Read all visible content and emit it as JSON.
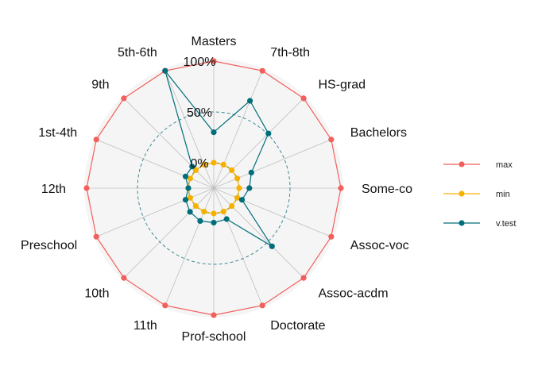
{
  "chart_data": {
    "type": "radar",
    "title": "",
    "categories": [
      "Masters",
      "7th-8th",
      "HS-grad",
      "Bachelors",
      "Some-co",
      "Assoc-voc",
      "Assoc-acdm",
      "Doctorate",
      "Prof-school",
      "11th",
      "10th",
      "Preschool",
      "12th",
      "1st-4th",
      "9th",
      "5th-6th"
    ],
    "tick_labels": [
      "0%",
      "50%",
      "100%"
    ],
    "rlim": [
      -25,
      100
    ],
    "series": [
      {
        "name": "max",
        "color": "#F25F5C",
        "values": [
          100,
          100,
          100,
          100,
          100,
          100,
          100,
          100,
          100,
          100,
          100,
          100,
          100,
          100,
          100,
          100
        ]
      },
      {
        "name": "min",
        "color": "#F6B100",
        "values": [
          0,
          0,
          0,
          0,
          0,
          0,
          0,
          0,
          0,
          0,
          0,
          0,
          0,
          0,
          0,
          0
        ]
      },
      {
        "name": "v.test",
        "color": "#006E7A",
        "values": [
          30,
          68,
          51,
          15,
          10,
          5,
          56,
          8,
          9,
          10,
          8,
          5,
          0,
          5,
          5,
          100
        ]
      }
    ],
    "legend_position": "right",
    "grid": true
  }
}
